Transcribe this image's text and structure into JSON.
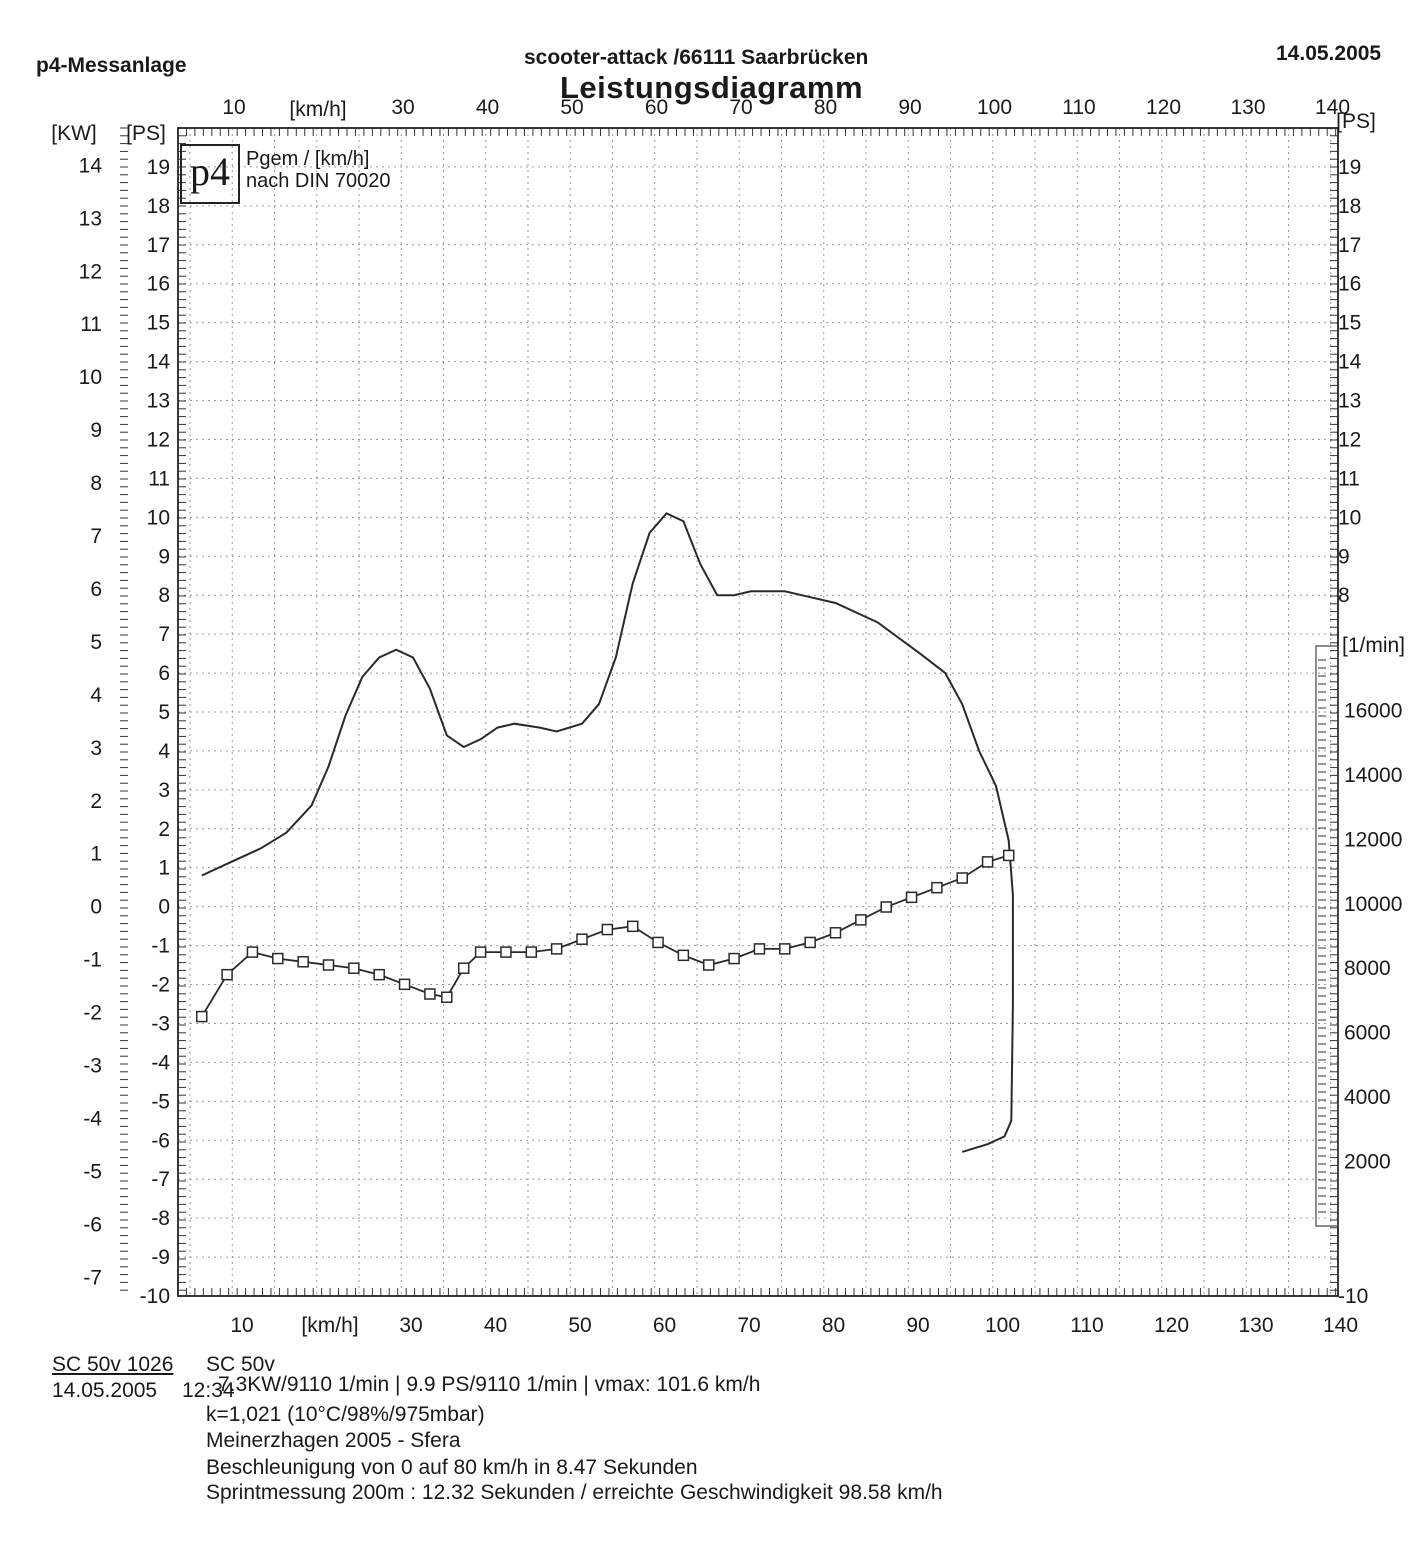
{
  "header": {
    "left": "p4-Messanlage",
    "center": "scooter-attack  /66111 Saarbrücken",
    "title": "Leistungsdiagramm",
    "date": "14.05.2005"
  },
  "legend": {
    "logo": "p4",
    "line1": "Pgem / [km/h]",
    "line2": "nach DIN 70020"
  },
  "footer": {
    "vehicle_name": "SC 50v 1026",
    "vehicle_model": "SC 50v",
    "date": "14.05.2005",
    "time": "12:34",
    "line1": "7.3KW/9110 1/min  |  9.9 PS/9110 1/min  |  vmax: 101.6 km/h",
    "line2": "k=1,021 (10°C/98%/975mbar)",
    "line3": "Meinerzhagen 2005 - Sfera",
    "line4": "Beschleunigung von 0 auf 80 km/h in 8.47 Sekunden",
    "line5": "Sprintmessung 200m : 12.32 Sekunden / erreichte Geschwindigkeit 98.58 km/h"
  },
  "chart_data": {
    "type": "line",
    "x_axis": {
      "label": "[km/h]",
      "ticks": [
        10,
        30,
        40,
        50,
        60,
        70,
        80,
        90,
        100,
        110,
        120,
        130,
        140
      ],
      "range": [
        5,
        140
      ]
    },
    "y_axis_kw": {
      "label": "[KW]",
      "ticks": [
        14,
        13,
        12,
        11,
        10,
        9,
        8,
        7,
        6,
        5,
        4,
        3,
        2,
        1,
        0,
        -1,
        -2,
        -3,
        -4,
        -5,
        -6,
        -7
      ],
      "range": [
        -7.8,
        14.8
      ]
    },
    "y_axis_ps_left": {
      "label": "[PS]",
      "ticks": [
        19,
        18,
        17,
        16,
        15,
        14,
        13,
        12,
        11,
        10,
        9,
        8,
        7,
        6,
        5,
        4,
        3,
        2,
        1,
        0,
        -1,
        -2,
        -3,
        -4,
        -5,
        -6,
        -7,
        -8,
        -9,
        -10
      ],
      "range": [
        -10,
        20
      ]
    },
    "y_axis_ps_right": {
      "label": "[PS]",
      "ticks": [
        19,
        18,
        17,
        16,
        15,
        14,
        13,
        12,
        11,
        10,
        9,
        8,
        -10
      ]
    },
    "y_axis_rpm": {
      "label": "[1/min]",
      "ticks": [
        16000,
        14000,
        12000,
        10000,
        8000,
        6000,
        4000,
        2000
      ],
      "range": [
        0,
        18000
      ]
    },
    "grid": true,
    "series": [
      {
        "unit": "PS",
        "points": [
          [
            5,
            0.8
          ],
          [
            8,
            1.1
          ],
          [
            12,
            1.5
          ],
          [
            15,
            1.9
          ],
          [
            18,
            2.6
          ],
          [
            20,
            3.6
          ],
          [
            22,
            4.9
          ],
          [
            24,
            5.9
          ],
          [
            26,
            6.4
          ],
          [
            28,
            6.6
          ],
          [
            30,
            6.4
          ],
          [
            32,
            5.6
          ],
          [
            34,
            4.4
          ],
          [
            36,
            4.1
          ],
          [
            38,
            4.3
          ],
          [
            40,
            4.6
          ],
          [
            42,
            4.7
          ],
          [
            45,
            4.6
          ],
          [
            47,
            4.5
          ],
          [
            50,
            4.7
          ],
          [
            52,
            5.2
          ],
          [
            54,
            6.4
          ],
          [
            56,
            8.3
          ],
          [
            58,
            9.6
          ],
          [
            60,
            10.1
          ],
          [
            62,
            9.9
          ],
          [
            64,
            8.8
          ],
          [
            66,
            8.0
          ],
          [
            68,
            8.0
          ],
          [
            70,
            8.1
          ],
          [
            72,
            8.1
          ],
          [
            74,
            8.1
          ],
          [
            76,
            8.0
          ],
          [
            80,
            7.8
          ],
          [
            85,
            7.3
          ],
          [
            90,
            6.5
          ],
          [
            93,
            6.0
          ],
          [
            95,
            5.2
          ],
          [
            97,
            4.0
          ],
          [
            99,
            3.1
          ],
          [
            100.5,
            1.7
          ],
          [
            101,
            0.3
          ],
          [
            101,
            -2.5
          ],
          [
            100.8,
            -5.5
          ],
          [
            100,
            -5.9
          ],
          [
            98,
            -6.1
          ],
          [
            95,
            -6.3
          ]
        ]
      },
      {
        "unit": "1/min",
        "markers": "square",
        "points": [
          [
            5,
            6500
          ],
          [
            8,
            7800
          ],
          [
            11,
            8500
          ],
          [
            14,
            8300
          ],
          [
            17,
            8200
          ],
          [
            20,
            8100
          ],
          [
            23,
            8000
          ],
          [
            26,
            7800
          ],
          [
            29,
            7500
          ],
          [
            32,
            7200
          ],
          [
            34,
            7100
          ],
          [
            36,
            8000
          ],
          [
            38,
            8500
          ],
          [
            41,
            8500
          ],
          [
            44,
            8500
          ],
          [
            47,
            8600
          ],
          [
            50,
            8900
          ],
          [
            53,
            9200
          ],
          [
            56,
            9300
          ],
          [
            59,
            8800
          ],
          [
            62,
            8400
          ],
          [
            65,
            8100
          ],
          [
            68,
            8300
          ],
          [
            71,
            8600
          ],
          [
            74,
            8600
          ],
          [
            77,
            8800
          ],
          [
            80,
            9100
          ],
          [
            83,
            9500
          ],
          [
            86,
            9900
          ],
          [
            89,
            10200
          ],
          [
            92,
            10500
          ],
          [
            95,
            10800
          ],
          [
            98,
            11300
          ],
          [
            100.5,
            11500
          ]
        ]
      }
    ]
  }
}
